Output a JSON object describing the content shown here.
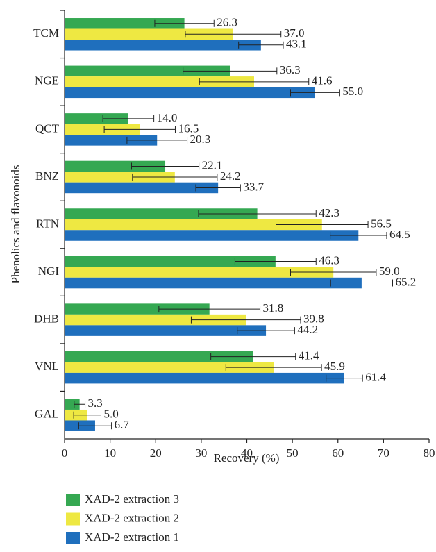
{
  "chart_data": {
    "type": "hbar",
    "xlabel": "Recovery (%)",
    "ylabel": "Phenolics and flavonoids",
    "categories": [
      "TCM",
      "NGE",
      "QCT",
      "BNZ",
      "RTN",
      "NGI",
      "DHB",
      "VNL",
      "GAL"
    ],
    "series": [
      {
        "name": "XAD-2 extraction 3",
        "color": "#35a852",
        "values": [
          26.3,
          36.3,
          14.0,
          22.1,
          42.3,
          46.3,
          31.8,
          41.4,
          3.3
        ],
        "value_labels": [
          "26.3",
          "36.3",
          "14.0",
          "22.1",
          "42.3",
          "46.3",
          "31.8",
          "41.4",
          "3.3"
        ],
        "errors": [
          6.5,
          10.3,
          5.6,
          7.4,
          12.9,
          8.9,
          11.1,
          9.3,
          1.2
        ]
      },
      {
        "name": "XAD-2 extraction 2",
        "color": "#eee842",
        "values": [
          37.0,
          41.6,
          16.5,
          24.2,
          56.5,
          59.0,
          39.8,
          45.9,
          5.0
        ],
        "value_labels": [
          "37.0",
          "41.6",
          "16.5",
          "24.2",
          "56.5",
          "59.0",
          "39.8",
          "45.9",
          "5.0"
        ],
        "errors": [
          10.5,
          12.0,
          7.8,
          9.3,
          10.1,
          9.4,
          12.0,
          10.5,
          3.0
        ]
      },
      {
        "name": "XAD-2 extraction 1",
        "color": "#1f6fbd",
        "values": [
          43.1,
          55.0,
          20.3,
          33.7,
          64.5,
          65.2,
          44.2,
          61.4,
          6.7
        ],
        "value_labels": [
          "43.1",
          "55.0",
          "20.3",
          "33.7",
          "64.5",
          "65.2",
          "44.2",
          "61.4",
          "6.7"
        ],
        "errors": [
          4.9,
          5.4,
          6.6,
          4.9,
          6.2,
          6.8,
          6.3,
          4.0,
          3.6
        ]
      }
    ],
    "xlim": [
      0,
      80
    ],
    "xticks": [
      0,
      10,
      20,
      30,
      40,
      50,
      60,
      70,
      80
    ]
  }
}
